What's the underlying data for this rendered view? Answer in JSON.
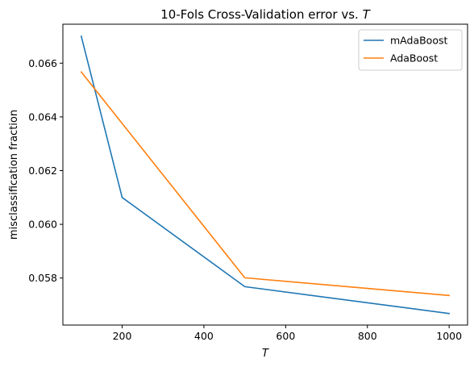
{
  "chart_data": {
    "type": "line",
    "title": "10-Fols Cross-Validation error vs. ",
    "title_italic": "T",
    "xlabel": "T",
    "ylabel": "misclassification fraction",
    "xlim": [
      55,
      1045
    ],
    "ylim": [
      0.05625,
      0.06745
    ],
    "xticks": [
      200,
      400,
      600,
      800,
      1000
    ],
    "xtick_labels": [
      "200",
      "400",
      "600",
      "800",
      "1000"
    ],
    "yticks": [
      0.058,
      0.06,
      0.062,
      0.064,
      0.066
    ],
    "ytick_labels": [
      "0.058",
      "0.060",
      "0.062",
      "0.064",
      "0.066"
    ],
    "legend_position": "top-right",
    "series": [
      {
        "name": "mAdaBoost",
        "color": "#1f77b4",
        "x": [
          100,
          200,
          500,
          1000
        ],
        "y": [
          0.067,
          0.061,
          0.05768,
          0.05668
        ]
      },
      {
        "name": "AdaBoost",
        "color": "#ff7f0e",
        "x": [
          100,
          500,
          1000
        ],
        "y": [
          0.06567,
          0.05801,
          0.05735
        ]
      }
    ]
  }
}
